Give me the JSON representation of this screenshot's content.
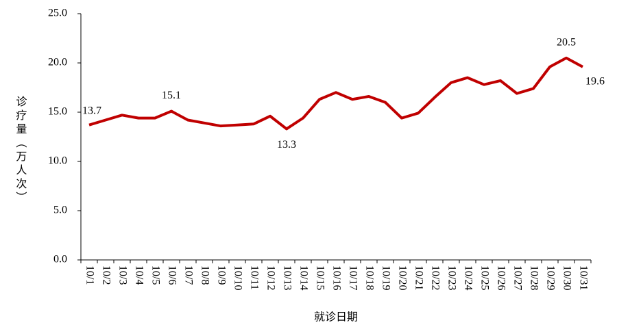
{
  "chart_data": {
    "type": "line",
    "x_label": "就诊日期",
    "y_label": "诊疗量（万人次）",
    "categories": [
      "10/1",
      "10/2",
      "10/3",
      "10/4",
      "10/5",
      "10/6",
      "10/7",
      "10/8",
      "10/9",
      "10/10",
      "10/11",
      "10/12",
      "10/13",
      "10/14",
      "10/15",
      "10/16",
      "10/17",
      "10/18",
      "10/19",
      "10/20",
      "10/21",
      "10/22",
      "10/23",
      "10/24",
      "10/25",
      "10/26",
      "10/27",
      "10/28",
      "10/29",
      "10/30",
      "10/31"
    ],
    "series": [
      {
        "color": "#c00000",
        "values": [
          13.7,
          14.2,
          14.7,
          14.4,
          14.4,
          15.1,
          14.2,
          13.9,
          13.6,
          13.7,
          13.8,
          14.6,
          13.3,
          14.4,
          16.3,
          17.0,
          16.3,
          16.6,
          16.0,
          14.4,
          14.9,
          16.5,
          18.0,
          18.5,
          17.8,
          18.2,
          16.9,
          17.4,
          19.6,
          20.5,
          19.6
        ],
        "value_labels": [
          "13.7",
          null,
          null,
          null,
          null,
          "15.1",
          null,
          null,
          null,
          null,
          null,
          null,
          "13.3",
          null,
          null,
          null,
          null,
          null,
          null,
          null,
          null,
          null,
          null,
          null,
          null,
          null,
          null,
          null,
          null,
          "20.5",
          "19.6"
        ]
      }
    ],
    "ylim": [
      0,
      25
    ],
    "yticks": [
      {
        "value": 0,
        "label": "0.0"
      },
      {
        "value": 5,
        "label": "5.0"
      },
      {
        "value": 10,
        "label": "10.0"
      },
      {
        "value": 15,
        "label": "15.0"
      },
      {
        "value": 20,
        "label": "20.0"
      },
      {
        "value": 25,
        "label": "25.0"
      }
    ]
  }
}
